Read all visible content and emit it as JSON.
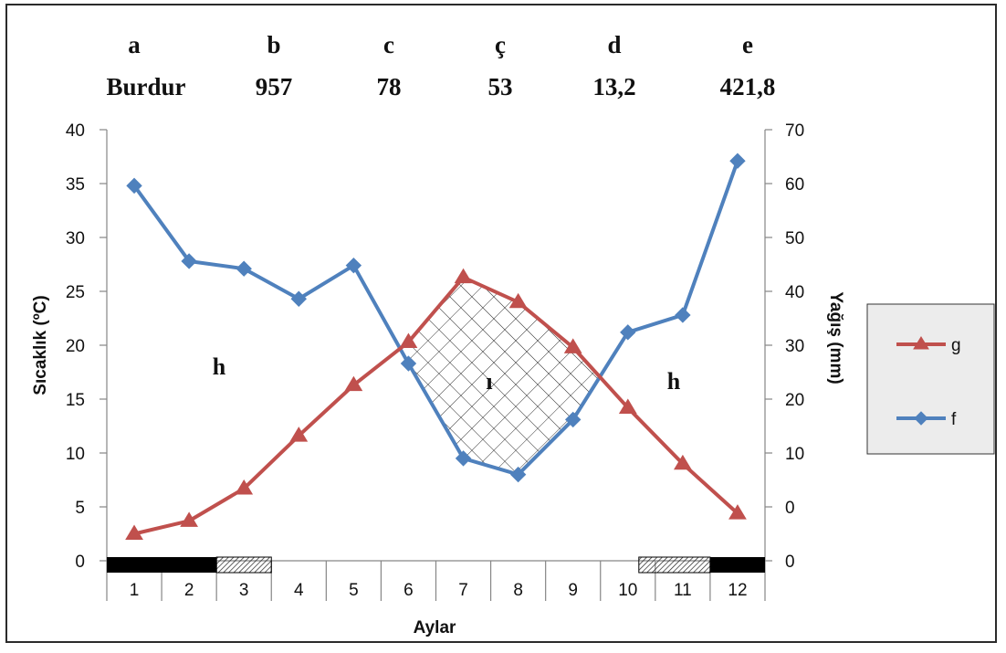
{
  "header": {
    "letters": [
      "a",
      "b",
      "c",
      "ç",
      "d",
      "e"
    ],
    "values": [
      "Burdur",
      "957",
      "78",
      "53",
      "13,2",
      "421,8"
    ]
  },
  "region_labels": {
    "humid_left": "h",
    "arid": "ı",
    "humid_right": "h"
  },
  "colors": {
    "g": "#c0504d",
    "f": "#4f81bd",
    "legend_bg": "#ececec",
    "dry_bar": "#000000"
  },
  "chart_data": {
    "type": "line",
    "categories": [
      "1",
      "2",
      "3",
      "4",
      "5",
      "6",
      "7",
      "8",
      "9",
      "10",
      "11",
      "12"
    ],
    "xlabel": "Aylar",
    "ylabel": "Sıcaklık (ºC)",
    "y2label": "Yağış (mm)",
    "ylim": [
      0,
      40
    ],
    "yticks": [
      "0",
      "5",
      "10",
      "15",
      "20",
      "25",
      "30",
      "35",
      "40"
    ],
    "y2ticks": [
      "0",
      "0",
      "10",
      "20",
      "30",
      "40",
      "50",
      "60",
      "70"
    ],
    "grid": false,
    "legend_position": "right",
    "series": [
      {
        "name": "g",
        "axis": "left",
        "marker": "triangle",
        "values": [
          2.5,
          3.7,
          6.7,
          11.6,
          16.3,
          20.3,
          26.3,
          24.0,
          19.8,
          14.2,
          9.0,
          4.4
        ]
      },
      {
        "name": "f",
        "axis": "left",
        "marker": "diamond",
        "values": [
          34.8,
          27.8,
          27.1,
          24.3,
          27.4,
          18.3,
          9.5,
          8.0,
          13.1,
          21.2,
          22.8,
          37.1
        ]
      }
    ],
    "bottom_bar": {
      "solid_months": [
        [
          1,
          2.5
        ],
        [
          11.5,
          12
        ]
      ],
      "hatched_months": [
        [
          2.5,
          3.5
        ],
        [
          10.2,
          11.5
        ]
      ]
    }
  }
}
